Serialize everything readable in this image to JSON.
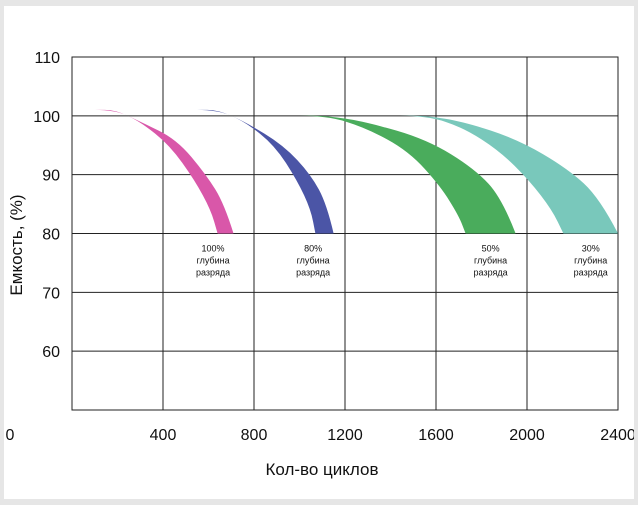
{
  "chart_data": {
    "type": "area",
    "xlabel": "Кол-во циклов",
    "ylabel": "Емкость, (%)",
    "xlim": [
      0,
      2400
    ],
    "ylim": [
      50,
      110
    ],
    "x_ticks": [
      "0",
      "400",
      "800",
      "1200",
      "1600",
      "2000",
      "2400"
    ],
    "y_ticks": [
      "110",
      "100",
      "90",
      "80",
      "70",
      "60"
    ],
    "grid": true,
    "series": [
      {
        "name": "100% глубина разряда",
        "label_lines": [
          "100%",
          "глубина",
          "разряда"
        ],
        "color": "#d957a9",
        "upper": [
          [
            100,
            101
          ],
          [
            190,
            101
          ],
          [
            300,
            99
          ],
          [
            430,
            95
          ],
          [
            540,
            89
          ],
          [
            610,
            84
          ],
          [
            640,
            80
          ]
        ],
        "lower": [
          [
            100,
            101
          ],
          [
            190,
            101
          ],
          [
            300,
            99
          ],
          [
            460,
            96
          ],
          [
            590,
            90
          ],
          [
            670,
            85
          ],
          [
            710,
            80
          ]
        ]
      },
      {
        "name": "80% глубина разряда",
        "label_lines": [
          "80%",
          "глубина",
          "разряда"
        ],
        "color": "#4b55a6",
        "upper": [
          [
            550,
            101
          ],
          [
            640,
            101
          ],
          [
            760,
            99
          ],
          [
            890,
            95
          ],
          [
            990,
            89
          ],
          [
            1050,
            84
          ],
          [
            1070,
            80
          ]
        ],
        "lower": [
          [
            550,
            101
          ],
          [
            640,
            101
          ],
          [
            760,
            99
          ],
          [
            930,
            95
          ],
          [
            1050,
            90
          ],
          [
            1120,
            85
          ],
          [
            1150,
            80
          ]
        ]
      },
      {
        "name": "50% глубина разряда",
        "label_lines": [
          "50%",
          "глубина",
          "разряда"
        ],
        "color": "#4aac5c",
        "upper": [
          [
            1000,
            100
          ],
          [
            1120,
            100
          ],
          [
            1290,
            98
          ],
          [
            1480,
            94
          ],
          [
            1620,
            88
          ],
          [
            1700,
            83
          ],
          [
            1730,
            80
          ]
        ],
        "lower": [
          [
            1000,
            100
          ],
          [
            1120,
            100
          ],
          [
            1290,
            99
          ],
          [
            1560,
            96
          ],
          [
            1770,
            91
          ],
          [
            1890,
            86
          ],
          [
            1950,
            80
          ]
        ]
      },
      {
        "name": "30% глубина разряда",
        "label_lines": [
          "30%",
          "глубина",
          "разряда"
        ],
        "color": "#79c8bb",
        "upper": [
          [
            1440,
            100
          ],
          [
            1560,
            100
          ],
          [
            1720,
            98
          ],
          [
            1880,
            94
          ],
          [
            2010,
            89
          ],
          [
            2110,
            84
          ],
          [
            2160,
            80
          ]
        ],
        "lower": [
          [
            1440,
            100
          ],
          [
            1560,
            100
          ],
          [
            1720,
            99
          ],
          [
            1960,
            96
          ],
          [
            2180,
            91
          ],
          [
            2320,
            86
          ],
          [
            2400,
            80
          ]
        ]
      }
    ]
  }
}
